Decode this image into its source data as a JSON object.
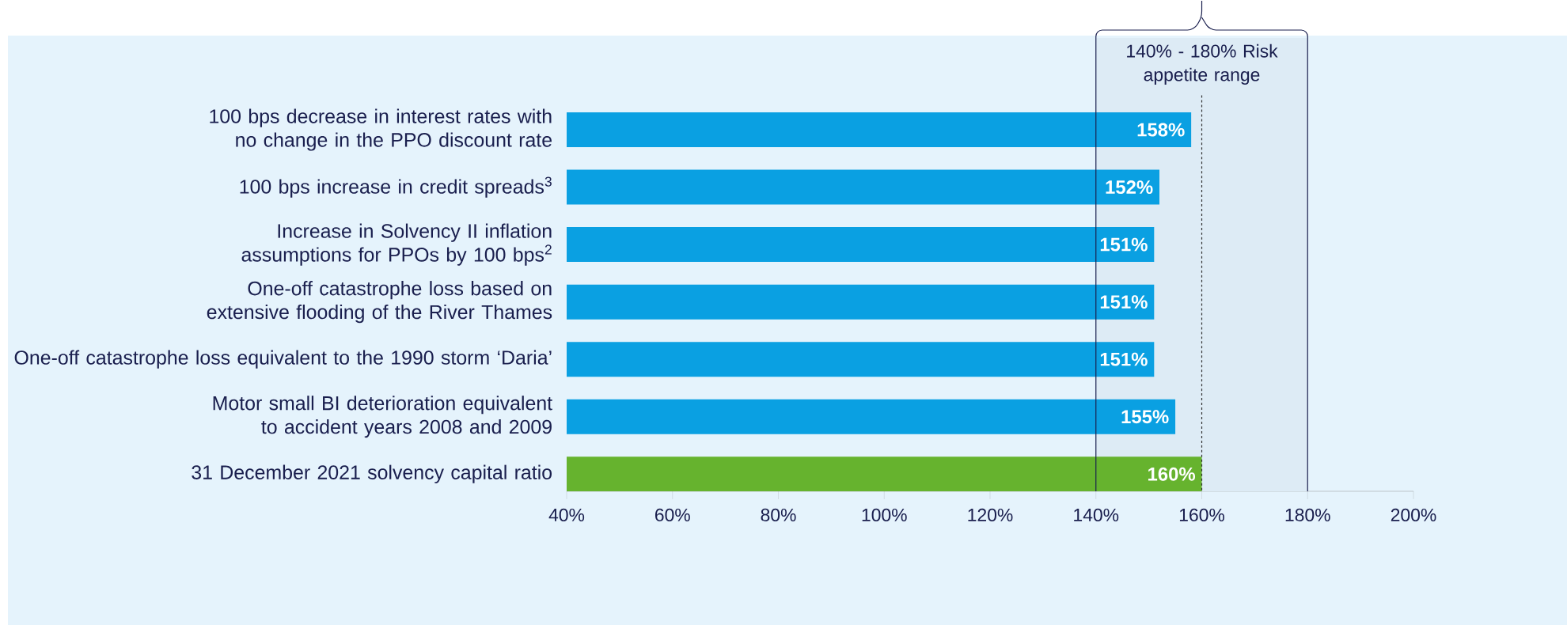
{
  "chart_data": {
    "type": "bar",
    "orientation": "horizontal",
    "categories": [
      "100 bps decrease in interest rates with no change in the PPO discount rate",
      "100 bps increase in credit spreads$^{3}$",
      "Increase in Solvency II inflation assumptions for PPOs by 100 bps$^{2}$",
      "One-off catastrophe loss based on extensive flooding of the River Thames",
      "One-off catastrophe loss equivalent to the 1990 storm ‘Daria’",
      "Motor small BI deterioration equivalent to accident years 2008 and 2009",
      "31 December 2021 solvency capital ratio"
    ],
    "values": [
      158,
      152,
      151,
      151,
      151,
      155,
      160
    ],
    "colors": [
      "#0aa0e2",
      "#0aa0e2",
      "#0aa0e2",
      "#0aa0e2",
      "#0aa0e2",
      "#0aa0e2",
      "#66b32e"
    ],
    "value_labels": [
      "158%",
      "152%",
      "151%",
      "151%",
      "151%",
      "155%",
      "160%"
    ],
    "xlim": [
      40,
      200
    ],
    "xticks": [
      {
        "value": 40,
        "label": "40%"
      },
      {
        "value": 60,
        "label": "60%"
      },
      {
        "value": 80,
        "label": "80%"
      },
      {
        "value": 100,
        "label": "100%"
      },
      {
        "value": 120,
        "label": "120%"
      },
      {
        "value": 140,
        "label": "140%"
      },
      {
        "value": 160,
        "label": "160%"
      },
      {
        "value": 180,
        "label": "180%"
      },
      {
        "value": 200,
        "label": "200%"
      }
    ],
    "ref_lines": [
      {
        "axis": "x",
        "value": 160,
        "line_style": "dashed",
        "color": "#333333"
      },
      {
        "axis": "x",
        "value": 140,
        "line_style": "solid",
        "color": "#1a1f4e"
      },
      {
        "axis": "x",
        "value": 180,
        "line_style": "solid",
        "color": "#1a1f4e"
      }
    ],
    "bands": [
      {
        "axis": "x",
        "from": 140,
        "to": 180,
        "label": "140% - 180% Risk appetite range",
        "color": "#ddebf5"
      }
    ]
  }
}
